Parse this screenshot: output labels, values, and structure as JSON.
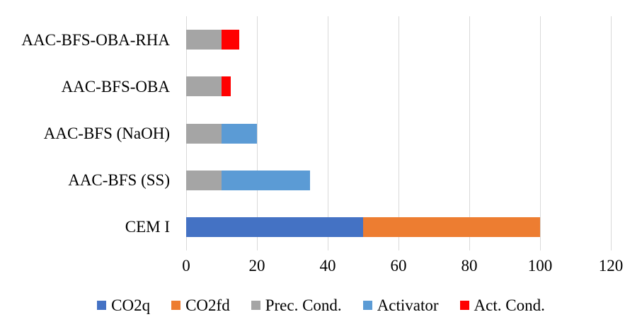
{
  "chart_data": {
    "type": "bar",
    "orientation": "horizontal",
    "stacked": true,
    "title": "",
    "xlabel": "",
    "ylabel": "",
    "categories": [
      "AAC-BFS-OBA-RHA",
      "AAC-BFS-OBA",
      "AAC-BFS (NaOH)",
      "AAC-BFS (SS)",
      "CEM I"
    ],
    "series": [
      {
        "name": "CO2q",
        "color": "#4472C4",
        "values": [
          0,
          0,
          0,
          0,
          50
        ]
      },
      {
        "name": "CO2fd",
        "color": "#ED7D31",
        "values": [
          0,
          0,
          0,
          0,
          50
        ]
      },
      {
        "name": "Prec. Cond.",
        "color": "#A5A5A5",
        "values": [
          10,
          10,
          10,
          10,
          0
        ]
      },
      {
        "name": "Activator",
        "color": "#5B9BD5",
        "values": [
          0,
          0,
          10,
          25,
          0
        ]
      },
      {
        "name": "Act. Cond.",
        "color": "#FF0000",
        "values": [
          5,
          2.5,
          0,
          0,
          0
        ]
      }
    ],
    "category_totals": [
      15,
      12.5,
      20,
      35,
      100
    ],
    "x_ticks": [
      0,
      20,
      40,
      60,
      80,
      100,
      120
    ],
    "xlim": [
      0,
      120
    ],
    "grid": true,
    "gridline_color": "#D9D9D9",
    "legend_position": "bottom",
    "background": "#FFFFFF"
  }
}
